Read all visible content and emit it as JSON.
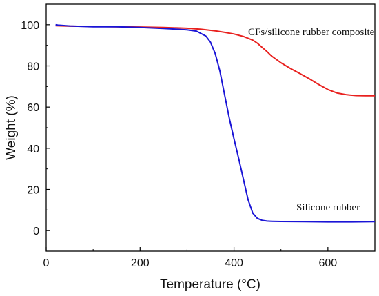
{
  "chart_data": {
    "type": "line",
    "xlabel": "Temperature (°C)",
    "ylabel": "Weight (%)",
    "xlim": [
      0,
      700
    ],
    "ylim": [
      -10,
      110
    ],
    "x_ticks": [
      0,
      200,
      400,
      600
    ],
    "y_ticks": [
      0,
      20,
      40,
      60,
      80,
      100
    ],
    "grid": false,
    "annotations": [
      {
        "text": "CFs/silicone rubber composite",
        "series": "red"
      },
      {
        "text": "Silicone rubber",
        "series": "blue"
      }
    ],
    "series": [
      {
        "color": "#e8201e",
        "x": [
          20,
          50,
          100,
          150,
          200,
          250,
          300,
          330,
          360,
          380,
          400,
          420,
          440,
          450,
          460,
          470,
          480,
          500,
          520,
          540,
          560,
          580,
          600,
          620,
          640,
          660,
          680,
          700
        ],
        "y": [
          99.5,
          99.3,
          99.2,
          99.0,
          98.9,
          98.7,
          98.3,
          97.8,
          97.0,
          96.3,
          95.5,
          94.3,
          92.5,
          91.0,
          89.0,
          87.0,
          84.8,
          81.5,
          78.8,
          76.3,
          73.8,
          71.0,
          68.5,
          66.8,
          66.0,
          65.6,
          65.5,
          65.5
        ]
      },
      {
        "color": "#1a14d6",
        "x": [
          20,
          25,
          50,
          100,
          150,
          200,
          250,
          300,
          320,
          340,
          350,
          360,
          370,
          380,
          390,
          400,
          410,
          420,
          430,
          440,
          450,
          460,
          470,
          480,
          500,
          550,
          600,
          650,
          700
        ],
        "y": [
          100,
          99.8,
          99.4,
          99.0,
          99.0,
          98.7,
          98.2,
          97.5,
          96.9,
          94.5,
          91.5,
          86.0,
          77.5,
          66.0,
          54.5,
          44.5,
          35.0,
          25.0,
          15.0,
          8.5,
          5.9,
          5.0,
          4.6,
          4.5,
          4.4,
          4.3,
          4.2,
          4.2,
          4.3
        ]
      }
    ]
  }
}
